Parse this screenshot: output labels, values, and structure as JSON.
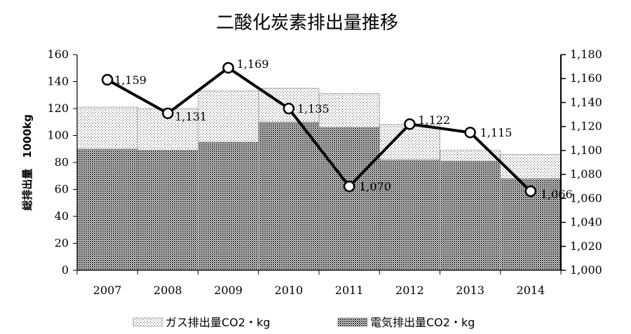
{
  "chart_data": {
    "type": "bar",
    "title": "二酸化炭素排出量推移",
    "ylabel": "総排出量　1000kg",
    "categories": [
      "2007",
      "2008",
      "2009",
      "2010",
      "2011",
      "2012",
      "2013",
      "2014"
    ],
    "ylim": [
      0,
      160
    ],
    "y2lim": [
      1000,
      1180
    ],
    "yticks": [
      "0",
      "20",
      "40",
      "60",
      "80",
      "100",
      "120",
      "140",
      "160"
    ],
    "y2ticks": [
      "1,000",
      "1,020",
      "1,040",
      "1,060",
      "1,080",
      "1,100",
      "1,120",
      "1,140",
      "1,160",
      "1,180"
    ],
    "stacked": true,
    "series": [
      {
        "name": "電気排出量CO2・kg",
        "type": "bar",
        "axis": "left",
        "values": [
          90,
          89,
          95,
          110,
          106,
          82,
          81,
          68
        ]
      },
      {
        "name": "ガス排出量CO2・kg",
        "type": "bar",
        "axis": "left",
        "values": [
          31,
          31,
          38,
          25,
          25,
          26,
          8,
          18
        ]
      },
      {
        "name": "",
        "type": "line",
        "axis": "right",
        "values": [
          1159,
          1131,
          1169,
          1135,
          1070,
          1122,
          1115,
          1066
        ],
        "labels": [
          "1,159",
          "1,131",
          "1,169",
          "1,135",
          "1,070",
          "1,122",
          "1,115",
          "1,066"
        ]
      }
    ],
    "legend": {
      "position": "bottom"
    },
    "grid": false
  }
}
